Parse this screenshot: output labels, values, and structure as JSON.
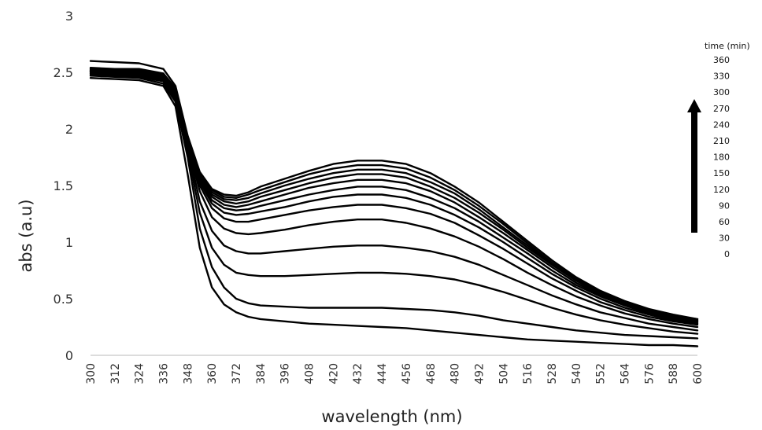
{
  "chart_data": {
    "type": "line",
    "title": "",
    "xlabel": "wavelength (nm)",
    "ylabel": "abs (a.u)",
    "xlim": [
      300,
      600
    ],
    "ylim": [
      0,
      3
    ],
    "x_ticks": [
      "300",
      "312",
      "324",
      "336",
      "348",
      "360",
      "372",
      "384",
      "396",
      "408",
      "420",
      "432",
      "444",
      "456",
      "468",
      "480",
      "492",
      "504",
      "516",
      "528",
      "540",
      "552",
      "564",
      "576",
      "588",
      "600"
    ],
    "y_ticks": [
      "0",
      "0.5",
      "1",
      "1.5",
      "2",
      "2.5",
      "3"
    ],
    "grid": false,
    "legend": {
      "title": "time (min)",
      "position": "right",
      "arrow": "up",
      "items": [
        "360",
        "330",
        "300",
        "270",
        "240",
        "210",
        "180",
        "150",
        "120",
        "90",
        "60",
        "30",
        "0"
      ]
    },
    "x": [
      300,
      312,
      324,
      336,
      342,
      348,
      354,
      360,
      366,
      372,
      378,
      384,
      396,
      408,
      420,
      432,
      444,
      456,
      468,
      480,
      492,
      504,
      516,
      528,
      540,
      552,
      564,
      576,
      588,
      600
    ],
    "series": [
      {
        "values": [
          2.45,
          2.44,
          2.43,
          2.38,
          2.2,
          1.6,
          0.95,
          0.6,
          0.45,
          0.38,
          0.34,
          0.32,
          0.3,
          0.28,
          0.27,
          0.26,
          0.25,
          0.24,
          0.22,
          0.2,
          0.18,
          0.16,
          0.14,
          0.13,
          0.12,
          0.11,
          0.1,
          0.09,
          0.09,
          0.08
        ]
      },
      {
        "values": [
          2.47,
          2.46,
          2.45,
          2.4,
          2.24,
          1.75,
          1.12,
          0.78,
          0.6,
          0.5,
          0.46,
          0.44,
          0.43,
          0.42,
          0.42,
          0.42,
          0.42,
          0.41,
          0.4,
          0.38,
          0.35,
          0.31,
          0.28,
          0.25,
          0.22,
          0.2,
          0.18,
          0.17,
          0.16,
          0.15
        ]
      },
      {
        "values": [
          2.48,
          2.47,
          2.46,
          2.42,
          2.26,
          1.8,
          1.26,
          0.95,
          0.8,
          0.73,
          0.71,
          0.7,
          0.7,
          0.71,
          0.72,
          0.73,
          0.73,
          0.72,
          0.7,
          0.67,
          0.62,
          0.56,
          0.49,
          0.42,
          0.36,
          0.31,
          0.27,
          0.24,
          0.21,
          0.19
        ]
      },
      {
        "values": [
          2.49,
          2.48,
          2.47,
          2.43,
          2.28,
          1.84,
          1.36,
          1.1,
          0.97,
          0.92,
          0.9,
          0.9,
          0.92,
          0.94,
          0.96,
          0.97,
          0.97,
          0.95,
          0.92,
          0.87,
          0.8,
          0.71,
          0.62,
          0.53,
          0.45,
          0.38,
          0.33,
          0.28,
          0.25,
          0.22
        ]
      },
      {
        "values": [
          2.5,
          2.49,
          2.48,
          2.44,
          2.3,
          1.86,
          1.45,
          1.22,
          1.12,
          1.08,
          1.07,
          1.08,
          1.11,
          1.15,
          1.18,
          1.2,
          1.2,
          1.17,
          1.12,
          1.05,
          0.96,
          0.85,
          0.73,
          0.62,
          0.52,
          0.44,
          0.37,
          0.32,
          0.28,
          0.25
        ]
      },
      {
        "values": [
          2.5,
          2.5,
          2.49,
          2.45,
          2.31,
          1.88,
          1.5,
          1.3,
          1.21,
          1.18,
          1.18,
          1.2,
          1.24,
          1.28,
          1.31,
          1.33,
          1.33,
          1.3,
          1.25,
          1.17,
          1.06,
          0.94,
          0.81,
          0.68,
          0.57,
          0.47,
          0.4,
          0.34,
          0.3,
          0.27
        ]
      },
      {
        "values": [
          2.51,
          2.5,
          2.5,
          2.46,
          2.32,
          1.89,
          1.53,
          1.34,
          1.26,
          1.24,
          1.25,
          1.27,
          1.31,
          1.36,
          1.4,
          1.42,
          1.42,
          1.39,
          1.33,
          1.24,
          1.13,
          1.0,
          0.86,
          0.72,
          0.6,
          0.5,
          0.42,
          0.36,
          0.31,
          0.28
        ]
      },
      {
        "values": [
          2.51,
          2.51,
          2.5,
          2.46,
          2.33,
          1.9,
          1.55,
          1.37,
          1.3,
          1.28,
          1.29,
          1.32,
          1.37,
          1.42,
          1.46,
          1.49,
          1.49,
          1.46,
          1.39,
          1.3,
          1.18,
          1.04,
          0.9,
          0.75,
          0.62,
          0.52,
          0.44,
          0.37,
          0.32,
          0.29
        ]
      },
      {
        "values": [
          2.52,
          2.51,
          2.51,
          2.47,
          2.34,
          1.91,
          1.57,
          1.4,
          1.33,
          1.31,
          1.33,
          1.36,
          1.42,
          1.48,
          1.52,
          1.55,
          1.55,
          1.52,
          1.45,
          1.35,
          1.22,
          1.08,
          0.93,
          0.78,
          0.64,
          0.53,
          0.45,
          0.38,
          0.33,
          0.3
        ]
      },
      {
        "values": [
          2.52,
          2.52,
          2.51,
          2.47,
          2.34,
          1.92,
          1.58,
          1.42,
          1.36,
          1.34,
          1.36,
          1.4,
          1.46,
          1.52,
          1.57,
          1.6,
          1.6,
          1.57,
          1.49,
          1.39,
          1.26,
          1.11,
          0.95,
          0.8,
          0.66,
          0.54,
          0.46,
          0.39,
          0.34,
          0.3
        ]
      },
      {
        "values": [
          2.53,
          2.52,
          2.52,
          2.48,
          2.35,
          1.92,
          1.6,
          1.44,
          1.38,
          1.37,
          1.39,
          1.43,
          1.5,
          1.56,
          1.61,
          1.64,
          1.64,
          1.61,
          1.53,
          1.43,
          1.29,
          1.13,
          0.97,
          0.81,
          0.67,
          0.55,
          0.46,
          0.4,
          0.35,
          0.31
        ]
      },
      {
        "values": [
          2.54,
          2.53,
          2.53,
          2.49,
          2.36,
          1.93,
          1.61,
          1.46,
          1.4,
          1.39,
          1.42,
          1.46,
          1.53,
          1.6,
          1.65,
          1.68,
          1.68,
          1.65,
          1.57,
          1.46,
          1.32,
          1.16,
          0.99,
          0.82,
          0.68,
          0.56,
          0.47,
          0.4,
          0.35,
          0.32
        ]
      },
      {
        "values": [
          2.6,
          2.59,
          2.58,
          2.53,
          2.38,
          1.94,
          1.62,
          1.47,
          1.42,
          1.41,
          1.44,
          1.49,
          1.56,
          1.63,
          1.69,
          1.72,
          1.72,
          1.69,
          1.61,
          1.49,
          1.35,
          1.18,
          1.01,
          0.84,
          0.69,
          0.57,
          0.48,
          0.41,
          0.36,
          0.32
        ]
      }
    ]
  }
}
